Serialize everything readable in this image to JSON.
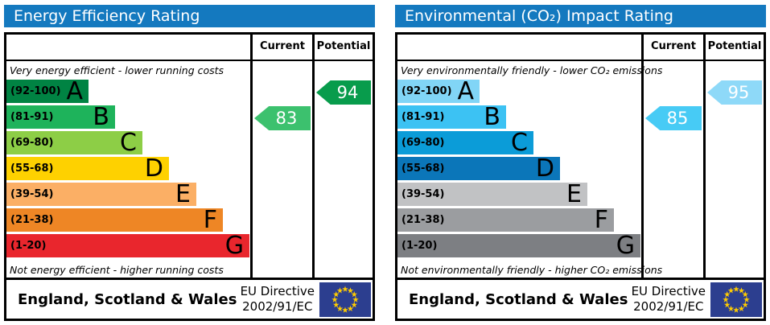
{
  "theme": {
    "header_bg": "#1479bf",
    "header_text": "#ffffff",
    "border": "#000000",
    "flag_bg": "#2c3e8f",
    "flag_stars": "#ffcc00"
  },
  "charts": [
    {
      "title": "Energy Efficiency Rating",
      "columns": {
        "current": "Current",
        "potential": "Potential"
      },
      "caption_top": "Very energy efficient - lower running costs",
      "caption_bottom": "Not energy efficient - higher running costs",
      "bands": [
        {
          "letter": "A",
          "range": "(92-100)",
          "min": 92,
          "max": 100,
          "color": "#008343"
        },
        {
          "letter": "B",
          "range": "(81-91)",
          "min": 81,
          "max": 91,
          "color": "#1eb35b"
        },
        {
          "letter": "C",
          "range": "(69-80)",
          "min": 69,
          "max": 80,
          "color": "#8dce46"
        },
        {
          "letter": "D",
          "range": "(55-68)",
          "min": 55,
          "max": 68,
          "color": "#fed100"
        },
        {
          "letter": "E",
          "range": "(39-54)",
          "min": 39,
          "max": 54,
          "color": "#fbaf65"
        },
        {
          "letter": "F",
          "range": "(21-38)",
          "min": 21,
          "max": 38,
          "color": "#ee8625"
        },
        {
          "letter": "G",
          "range": "(1-20)",
          "min": 1,
          "max": 20,
          "color": "#e9262d"
        }
      ],
      "current": {
        "value": 83,
        "color": "#3cc16e"
      },
      "potential": {
        "value": 94,
        "color": "#089c4c"
      },
      "footer": {
        "region": "England, Scotland & Wales",
        "directive_line1": "EU Directive",
        "directive_line2": "2002/91/EC"
      }
    },
    {
      "title": "Environmental (CO₂) Impact Rating",
      "columns": {
        "current": "Current",
        "potential": "Potential"
      },
      "caption_top": "Very environmentally friendly - lower CO₂ emissions",
      "caption_bottom": "Not environmentally friendly - higher CO₂ emissions",
      "bands": [
        {
          "letter": "A",
          "range": "(92-100)",
          "min": 92,
          "max": 100,
          "color": "#81d5f6"
        },
        {
          "letter": "B",
          "range": "(81-91)",
          "min": 81,
          "max": 91,
          "color": "#3cc2f3"
        },
        {
          "letter": "C",
          "range": "(69-80)",
          "min": 69,
          "max": 80,
          "color": "#0b9cd8"
        },
        {
          "letter": "D",
          "range": "(55-68)",
          "min": 55,
          "max": 68,
          "color": "#0b76b9"
        },
        {
          "letter": "E",
          "range": "(39-54)",
          "min": 39,
          "max": 54,
          "color": "#c1c2c4"
        },
        {
          "letter": "F",
          "range": "(21-38)",
          "min": 21,
          "max": 38,
          "color": "#9b9da0"
        },
        {
          "letter": "G",
          "range": "(1-20)",
          "min": 1,
          "max": 20,
          "color": "#7d7f83"
        }
      ],
      "current": {
        "value": 85,
        "color": "#47cbf5"
      },
      "potential": {
        "value": 95,
        "color": "#8ed9f8"
      },
      "footer": {
        "region": "England, Scotland & Wales",
        "directive_line1": "EU Directive",
        "directive_line2": "2002/91/EC"
      }
    }
  ],
  "chart_data": [
    {
      "type": "bar",
      "title": "Energy Efficiency Rating",
      "categories": [
        "A (92-100)",
        "B (81-91)",
        "C (69-80)",
        "D (55-68)",
        "E (39-54)",
        "F (21-38)",
        "G (1-20)"
      ],
      "series": [
        {
          "name": "Current",
          "values": [
            83
          ],
          "band": "B"
        },
        {
          "name": "Potential",
          "values": [
            94
          ],
          "band": "A"
        }
      ],
      "xlabel": "",
      "ylabel": "",
      "legend_position": "columns-right",
      "grid": false
    },
    {
      "type": "bar",
      "title": "Environmental (CO₂) Impact Rating",
      "categories": [
        "A (92-100)",
        "B (81-91)",
        "C (69-80)",
        "D (55-68)",
        "E (39-54)",
        "F (21-38)",
        "G (1-20)"
      ],
      "series": [
        {
          "name": "Current",
          "values": [
            85
          ],
          "band": "B"
        },
        {
          "name": "Potential",
          "values": [
            95
          ],
          "band": "A"
        }
      ],
      "xlabel": "",
      "ylabel": "",
      "legend_position": "columns-right",
      "grid": false
    }
  ]
}
